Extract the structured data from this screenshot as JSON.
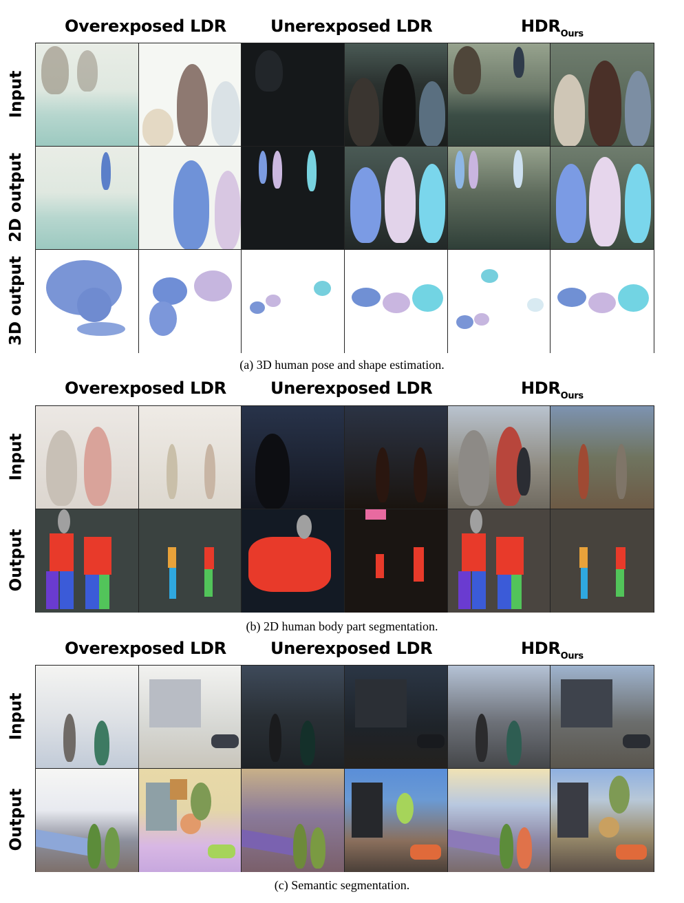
{
  "column_headers": [
    "Overexposed LDR",
    "Unerexposed LDR",
    "HDR"
  ],
  "hdr_subscript": "Ours",
  "section_a": {
    "row_labels": [
      "Input",
      "2D output",
      "3D output"
    ],
    "caption": "(a) 3D human pose and shape estimation."
  },
  "section_b": {
    "row_labels": [
      "Input",
      "Output"
    ],
    "caption": "(b) 2D human body part segmentation."
  },
  "section_c": {
    "row_labels": [
      "Input",
      "Output"
    ],
    "caption": "(c) Semantic segmentation."
  }
}
